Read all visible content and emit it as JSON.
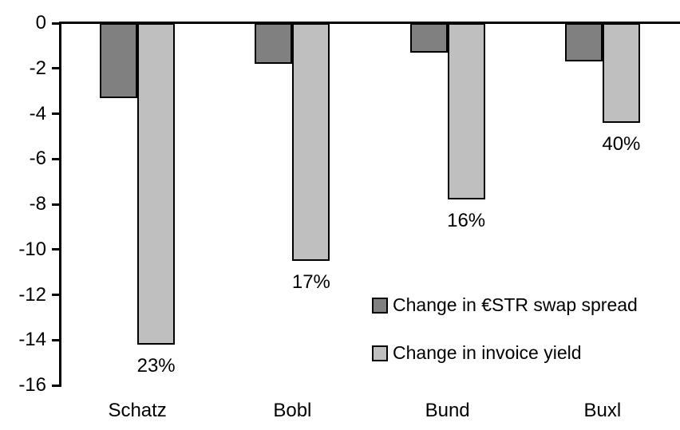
{
  "chart_data": {
    "type": "bar",
    "categories": [
      "Schatz",
      "Bobl",
      "Bund",
      "Buxl"
    ],
    "series": [
      {
        "name": "Change in €STR swap spread",
        "color": "#808080",
        "values": [
          -3.3,
          -1.8,
          -1.3,
          -1.7
        ]
      },
      {
        "name": "Change in invoice yield",
        "color": "#bfbfbf",
        "values": [
          -14.2,
          -10.5,
          -7.8,
          -4.4
        ],
        "bar_labels": [
          "23%",
          "17%",
          "16%",
          "40%"
        ]
      }
    ],
    "y_ticks": [
      0,
      -2,
      -4,
      -6,
      -8,
      -10,
      -12,
      -14,
      -16
    ],
    "ylim": [
      -16,
      0
    ],
    "grid": false,
    "legend_position": "inside-right",
    "axis_color": "#000000",
    "bar_border_color": "#000000"
  }
}
